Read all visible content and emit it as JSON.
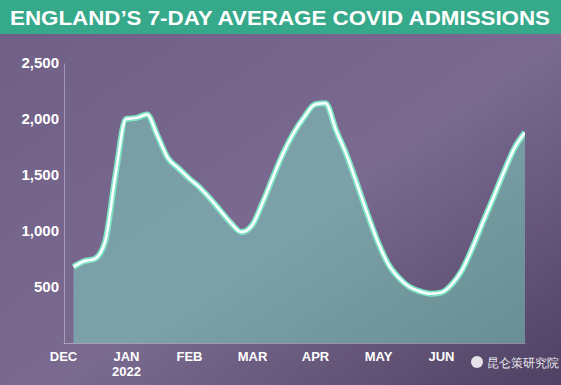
{
  "chart_data": {
    "type": "line",
    "title": "ENGLAND’S 7-DAY AVERAGE COVID ADMISSIONS",
    "watermark": "昆仑策研究院",
    "categories": [
      "DEC",
      null,
      null,
      null,
      null,
      null,
      "JAN 2022",
      null,
      null,
      null,
      null,
      null,
      "FEB",
      null,
      null,
      null,
      null,
      null,
      "MAR",
      null,
      null,
      null,
      null,
      null,
      "APR",
      null,
      null,
      null,
      null,
      null,
      "MAY",
      null,
      null,
      null,
      null,
      null,
      "JUN",
      null,
      null,
      null,
      null,
      null,
      null,
      null,
      null
    ],
    "values": [
      null,
      680,
      730,
      750,
      900,
      1500,
      2000,
      2010,
      2040,
      1850,
      1650,
      1560,
      1470,
      1390,
      1290,
      1180,
      1070,
      990,
      1050,
      1250,
      1480,
      1700,
      1880,
      2020,
      2130,
      2140,
      1900,
      1680,
      1420,
      1150,
      900,
      700,
      580,
      500,
      460,
      440,
      450,
      520,
      650,
      850,
      1080,
      1300,
      1530,
      1740,
      1880
    ],
    "color": "#7fe5c5",
    "ylim": [
      0,
      2500
    ],
    "yticks": [
      500,
      {
        "value": 1000,
        "label": "1,000"
      },
      {
        "value": 1500,
        "label": "1,500"
      },
      {
        "value": 2000,
        "label": "2,000"
      },
      {
        "value": 2500,
        "label": "2,500"
      }
    ],
    "grid": false
  }
}
